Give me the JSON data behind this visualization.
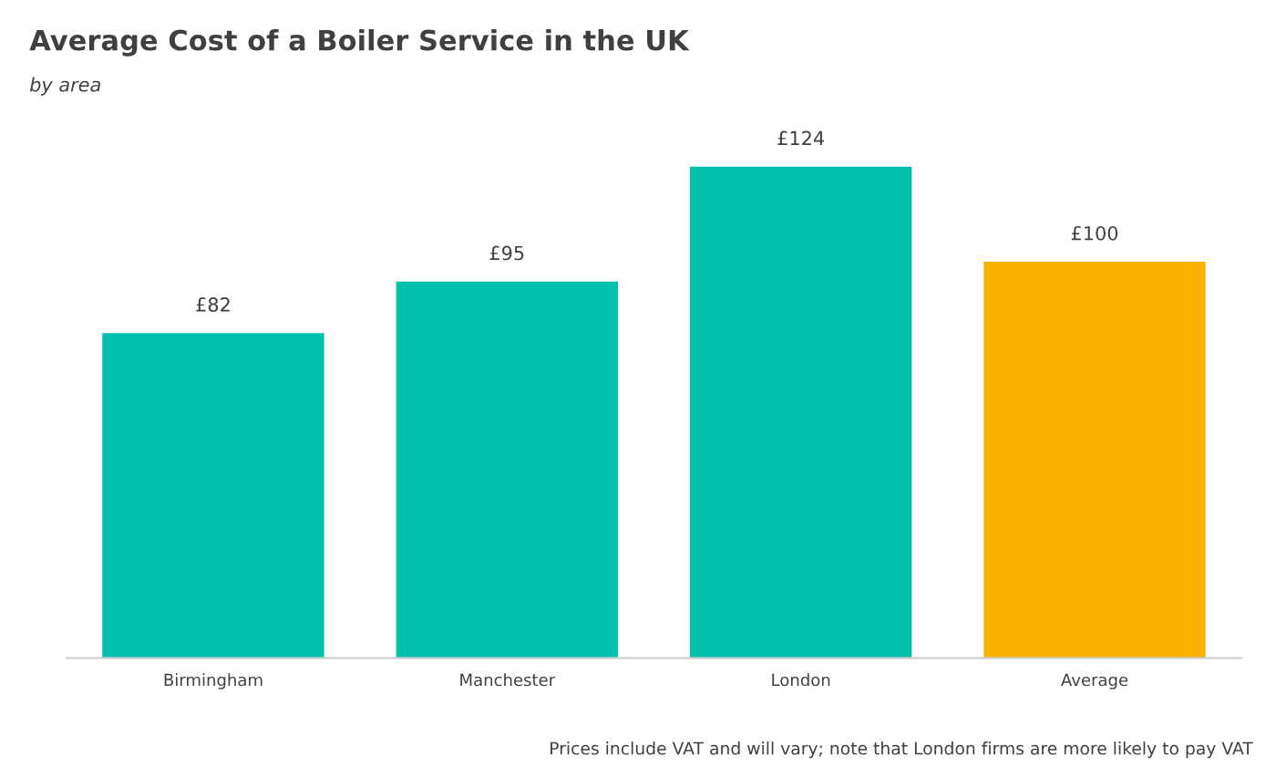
{
  "chart_data": {
    "type": "bar",
    "title": "Average Cost of a Boiler Service in the UK",
    "subtitle": "by area",
    "categories": [
      "Birmingham",
      "Manchester",
      "London",
      "Average"
    ],
    "values": [
      82,
      95,
      124,
      100
    ],
    "colors": [
      "#00c2ac",
      "#00c2ac",
      "#00c2ac",
      "#f9b300"
    ],
    "value_labels": [
      "£82",
      "£95",
      "£124",
      "£100"
    ],
    "annotations": [
      "Prices include VAT and will vary; note that London firms are more likely to pay VAT"
    ],
    "grid": false,
    "legend": false
  }
}
